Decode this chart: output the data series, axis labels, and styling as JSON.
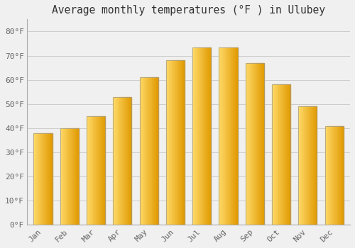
{
  "title": "Average monthly temperatures (°F ) in Ulubey",
  "months": [
    "Jan",
    "Feb",
    "Mar",
    "Apr",
    "May",
    "Jun",
    "Jul",
    "Aug",
    "Sep",
    "Oct",
    "Nov",
    "Dec"
  ],
  "values": [
    38,
    40,
    45,
    53,
    61,
    68,
    73.5,
    73.5,
    67,
    58,
    49,
    41
  ],
  "bar_color_light": "#FFD966",
  "bar_color_mid": "#FFC125",
  "bar_color_dark": "#F5A800",
  "bar_edge_color": "#888888",
  "background_color": "#F0F0F0",
  "plot_bg_color": "#F0F0F0",
  "grid_color": "#CCCCCC",
  "ylim": [
    0,
    85
  ],
  "yticks": [
    0,
    10,
    20,
    30,
    40,
    50,
    60,
    70,
    80
  ],
  "ytick_labels": [
    "0°F",
    "10°F",
    "20°F",
    "30°F",
    "40°F",
    "50°F",
    "60°F",
    "70°F",
    "80°F"
  ],
  "title_fontsize": 10.5,
  "tick_fontsize": 8,
  "title_color": "#333333",
  "tick_color": "#666666",
  "font_family": "monospace",
  "bar_width": 0.7
}
